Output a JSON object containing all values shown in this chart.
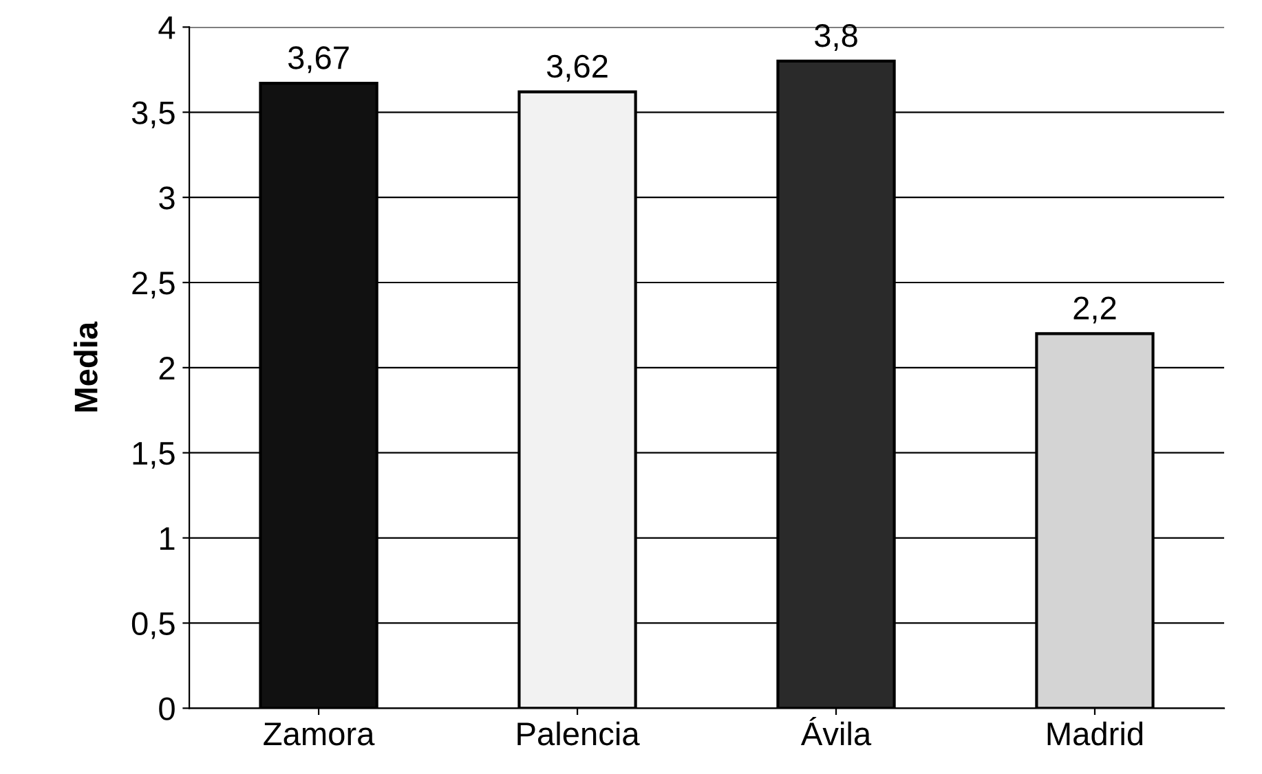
{
  "chart_data": {
    "type": "bar",
    "ylabel": "Media",
    "categories": [
      "Zamora",
      "Palencia",
      "Ávila",
      "Madrid"
    ],
    "values": [
      3.67,
      3.62,
      3.8,
      2.2
    ],
    "colors": [
      "#111111",
      "#f2f2f2",
      "#2a2a2a",
      "#d4d4d4"
    ],
    "value_labels": [
      "3,67",
      "3,62",
      "3,8",
      "2,2"
    ],
    "ylim": [
      0,
      4
    ],
    "yticks": [
      0,
      {
        "value": 0.5,
        "label": "0,5"
      },
      1,
      {
        "value": 1.5,
        "label": "1,5"
      },
      2,
      {
        "value": 2.5,
        "label": "2,5"
      },
      3,
      {
        "value": 3.5,
        "label": "3,5"
      },
      4
    ],
    "grid": "y",
    "legend": false
  }
}
